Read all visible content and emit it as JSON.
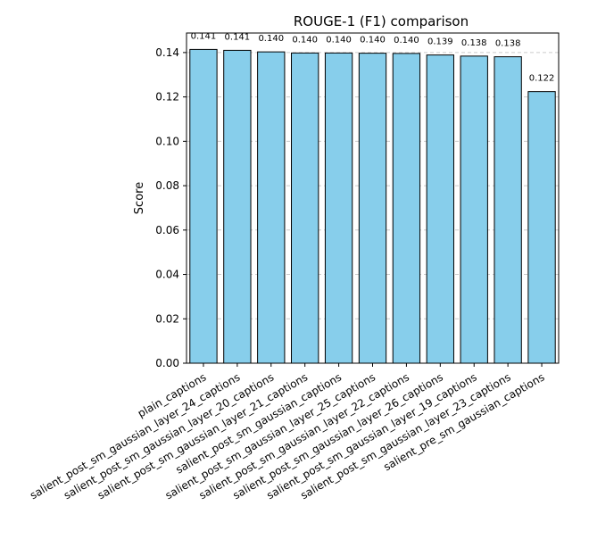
{
  "chart_data": {
    "type": "bar",
    "title": "ROUGE-1 (F1) comparison",
    "y_label": "Score",
    "categories": [
      "plain_captions",
      "salient_post_sm_gaussian_layer_24_captions",
      "salient_post_sm_gaussian_layer_20_captions",
      "salient_post_sm_gaussian_layer_21_captions",
      "salient_post_sm_gaussian_captions",
      "salient_post_sm_gaussian_layer_25_captions",
      "salient_post_sm_gaussian_layer_22_captions",
      "salient_post_sm_gaussian_layer_26_captions",
      "salient_post_sm_gaussian_layer_19_captions",
      "salient_post_sm_gaussian_layer_23_captions",
      "salient_pre_sm_gaussian_captions"
    ],
    "values": [
      0.1414,
      0.141,
      0.1403,
      0.1398,
      0.1398,
      0.1397,
      0.1396,
      0.1389,
      0.1384,
      0.1381,
      0.1224
    ],
    "value_labels": [
      "0.141",
      "0.141",
      "0.140",
      "0.140",
      "0.140",
      "0.140",
      "0.140",
      "0.139",
      "0.138",
      "0.138",
      "0.122"
    ],
    "color": "#87ceeb",
    "ylim": [
      0,
      0.1488
    ],
    "yticks": [
      {
        "value": 0,
        "label": "0.00"
      },
      {
        "value": 0.02,
        "label": "0.02"
      },
      {
        "value": 0.04,
        "label": "0.04"
      },
      {
        "value": 0.06,
        "label": "0.06"
      },
      {
        "value": 0.08,
        "label": "0.08"
      },
      {
        "value": 0.1,
        "label": "0.10"
      },
      {
        "value": 0.12,
        "label": "0.12"
      },
      {
        "value": 0.14,
        "label": "0.14"
      }
    ],
    "grid": true
  }
}
